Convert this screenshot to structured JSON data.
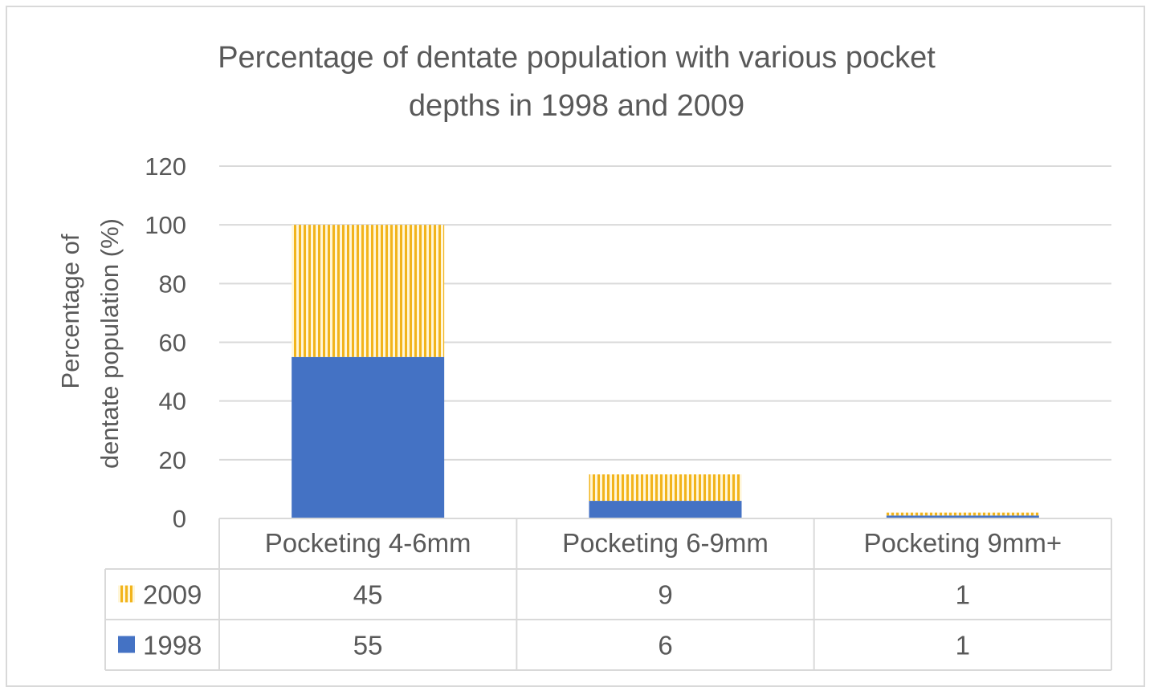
{
  "chart_data": {
    "type": "bar",
    "stacked": true,
    "title_line1": "Percentage of dentate population with various pocket",
    "title_line2": "depths in 1998 and 2009",
    "ylabel_line1": "Percentage of",
    "ylabel_line2": "dentate population (%)",
    "xlabel": "",
    "ylim": [
      0,
      120
    ],
    "yticks": [
      0,
      20,
      40,
      60,
      80,
      100,
      120
    ],
    "grid": true,
    "categories": [
      "Pocketing 4-6mm",
      "Pocketing 6-9mm",
      "Pocketing 9mm+"
    ],
    "series": [
      {
        "name": "1998",
        "values": [
          55,
          6,
          1
        ],
        "color": "#4472c4",
        "pattern": "solid"
      },
      {
        "name": "2009",
        "values": [
          45,
          9,
          1
        ],
        "color": "#f2b41c",
        "pattern": "vertical-stripes"
      }
    ],
    "data_table": true,
    "data_table_rows": [
      "2009",
      "1998"
    ]
  }
}
